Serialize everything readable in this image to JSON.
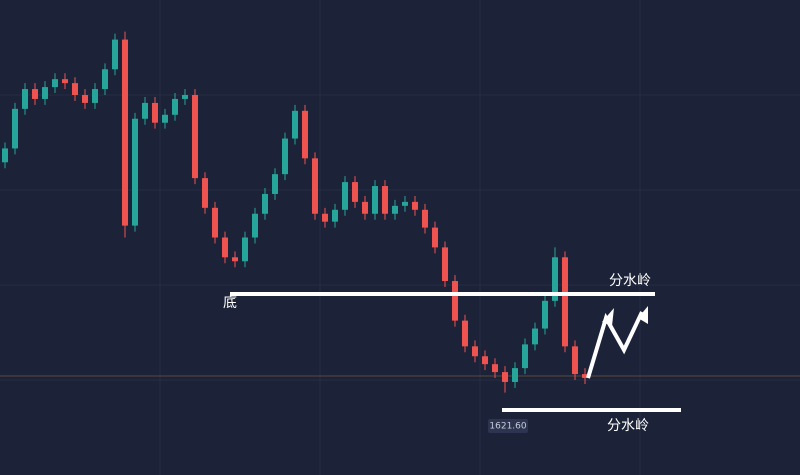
{
  "chart_data": {
    "type": "candlestick",
    "ylim": [
      1580,
      1820
    ],
    "up_color": "#26a69a",
    "down_color": "#ef5350",
    "open": [
      1738,
      1745,
      1765,
      1775,
      1770,
      1776,
      1780,
      1778,
      1772,
      1768,
      1775,
      1785,
      1800,
      1706,
      1760,
      1768,
      1758,
      1762,
      1770,
      1772,
      1730,
      1715,
      1700,
      1690,
      1688,
      1700,
      1712,
      1722,
      1732,
      1750,
      1764,
      1740,
      1712,
      1708,
      1714,
      1728,
      1718,
      1712,
      1726,
      1712,
      1716,
      1718,
      1714,
      1705,
      1695,
      1678,
      1658,
      1645,
      1640,
      1636,
      1632,
      1627,
      1634,
      1646,
      1654,
      1668,
      1690,
      1645,
      1631
    ],
    "high": [
      1748,
      1768,
      1778,
      1778,
      1779,
      1783,
      1783,
      1781,
      1775,
      1778,
      1788,
      1803,
      1804,
      1763,
      1771,
      1771,
      1765,
      1773,
      1775,
      1775,
      1733,
      1718,
      1703,
      1693,
      1703,
      1715,
      1725,
      1735,
      1753,
      1767,
      1767,
      1743,
      1715,
      1717,
      1731,
      1731,
      1721,
      1729,
      1729,
      1719,
      1721,
      1721,
      1717,
      1708,
      1698,
      1681,
      1661,
      1648,
      1643,
      1639,
      1635,
      1637,
      1649,
      1657,
      1671,
      1695,
      1693,
      1648,
      1634
    ],
    "low": [
      1735,
      1742,
      1762,
      1767,
      1767,
      1773,
      1775,
      1769,
      1765,
      1765,
      1772,
      1782,
      1700,
      1703,
      1757,
      1755,
      1755,
      1759,
      1767,
      1727,
      1712,
      1697,
      1687,
      1685,
      1685,
      1697,
      1709,
      1719,
      1729,
      1747,
      1737,
      1709,
      1705,
      1705,
      1711,
      1715,
      1709,
      1709,
      1709,
      1709,
      1713,
      1711,
      1702,
      1692,
      1675,
      1655,
      1642,
      1637,
      1633,
      1629,
      1621.6,
      1624,
      1631,
      1643,
      1651,
      1665,
      1642,
      1628,
      1626
    ],
    "close": [
      1745,
      1765,
      1775,
      1770,
      1776,
      1780,
      1778,
      1772,
      1768,
      1775,
      1785,
      1800,
      1706,
      1760,
      1768,
      1758,
      1762,
      1770,
      1772,
      1730,
      1715,
      1700,
      1690,
      1688,
      1700,
      1712,
      1722,
      1732,
      1750,
      1764,
      1740,
      1712,
      1708,
      1714,
      1728,
      1718,
      1712,
      1726,
      1712,
      1716,
      1718,
      1714,
      1705,
      1695,
      1678,
      1658,
      1645,
      1640,
      1636,
      1632,
      1627,
      1634,
      1646,
      1654,
      1668,
      1690,
      1645,
      1631,
      1629
    ],
    "annotations": {
      "bottom": "底",
      "watershed_upper": "分水岭",
      "watershed_lower": "分水岭",
      "low_price": "1621.60"
    }
  }
}
